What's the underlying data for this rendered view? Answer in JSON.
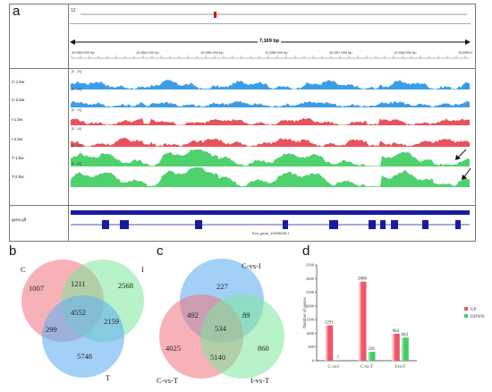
{
  "panel_a": {
    "letter": "a",
    "chrom": "12",
    "span_label": "7,169 bp",
    "ticks": [
      "10,553,000 bp",
      "10,554,000 bp",
      "10,555,000 bp",
      "10,556,000 bp",
      "10,557,000 bp",
      "10,558,000 bp",
      "10,559,000 bp"
    ],
    "tracks": [
      {
        "label": "C-1.bw",
        "range": "[0 - 20]",
        "color": "#3b9de6"
      },
      {
        "label": "C-2.bw",
        "range": "[0 - 10]",
        "color": "#3b9de6"
      },
      {
        "label": "I-1.bw",
        "range": "[0 - 10]",
        "color": "#e8525a"
      },
      {
        "label": "I-2.bw",
        "range": "[0 - 10]",
        "color": "#e8525a"
      },
      {
        "label": "T-1.bw",
        "range": "[0 - 20]",
        "color": "#4fd16e"
      },
      {
        "label": "T-2.bw",
        "range": "[0 - 20]",
        "color": "#4fd16e"
      }
    ],
    "gene_track_label": "gene.gff",
    "gene_name": "Eco_gene_10008628.1"
  },
  "panel_b": {
    "letter": "b",
    "sets": [
      "C",
      "I",
      "T"
    ],
    "values": {
      "C_only": "1007",
      "I_only": "2568",
      "T_only": "5748",
      "CI": "1211",
      "CT": "299",
      "IT": "2159",
      "CIT": "4552"
    }
  },
  "panel_c": {
    "letter": "c",
    "sets": [
      "C-vs-I",
      "C-vs-T",
      "I-vs-T"
    ],
    "values": {
      "CI_only": "227",
      "CT_only": "4025",
      "IT_only": "860",
      "CI_CT": "492",
      "CI_IT": "89",
      "CT_IT": "5140",
      "all": "534"
    }
  },
  "panel_d": {
    "letter": "d",
    "ylabel": "Number of genes",
    "legend": [
      {
        "name": "UP",
        "color": "#ee5566"
      },
      {
        "name": "DOWN",
        "color": "#44cc66"
      }
    ]
  },
  "chart_data": {
    "type": "bar",
    "categories": [
      "C-vs-I",
      "C-vs-T",
      "I-vs-T"
    ],
    "series": [
      {
        "name": "UP",
        "values": [
          1291,
          2888,
          984
        ]
      },
      {
        "name": "DOWN",
        "values": [
          7,
          326,
          843
        ]
      }
    ],
    "ylabel": "Number of genes",
    "ylim": [
      0,
      3500
    ],
    "yticks": [
      0,
      500,
      1000,
      1500,
      2000,
      2500,
      3000,
      3500
    ],
    "legend": "right"
  }
}
